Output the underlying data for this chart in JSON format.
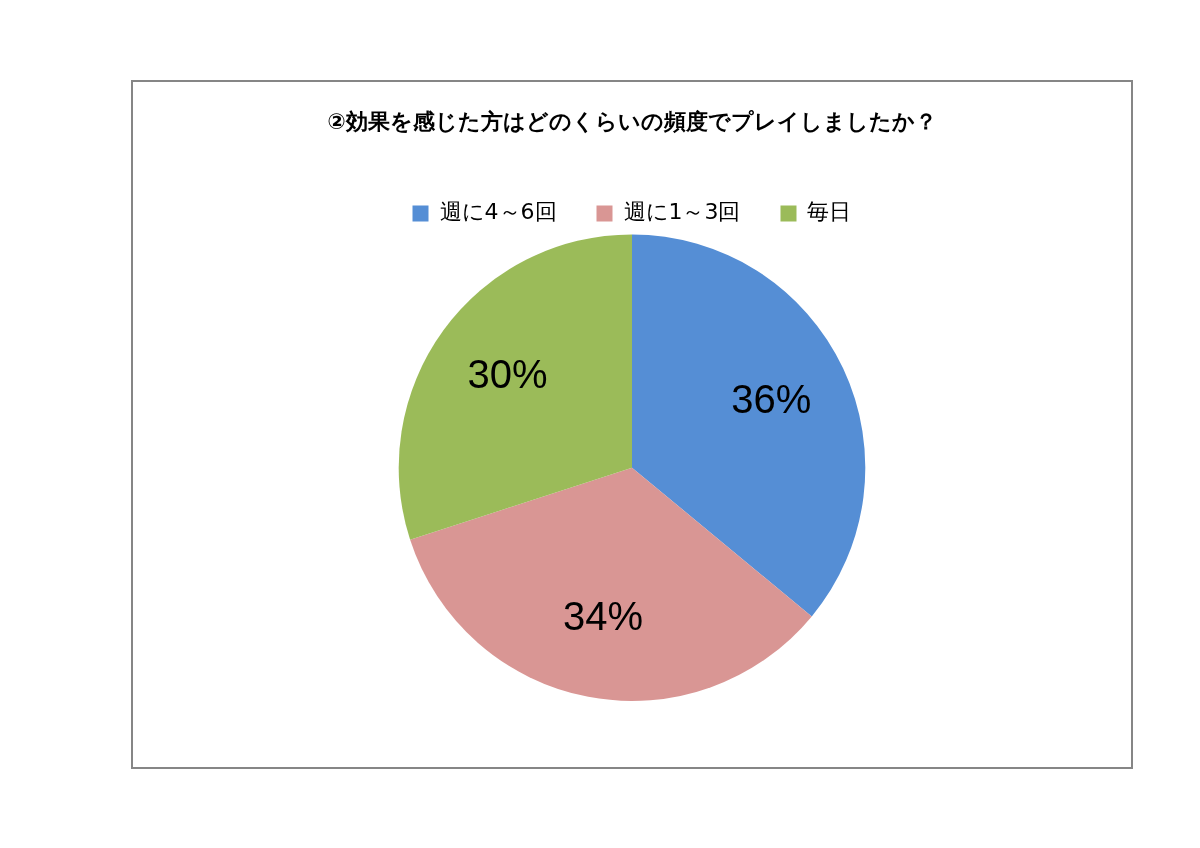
{
  "chart_data": {
    "type": "pie",
    "title": "②効果を感じた方はどのくらいの頻度でプレイしましたか？",
    "categories": [
      "週に4～6回",
      "週に1～3回",
      "毎日"
    ],
    "values": [
      36,
      34,
      30
    ],
    "colors": [
      "#558ed5",
      "#d99694",
      "#9bbb59"
    ],
    "value_labels": [
      "36%",
      "34%",
      "30%"
    ],
    "legend": "top"
  }
}
